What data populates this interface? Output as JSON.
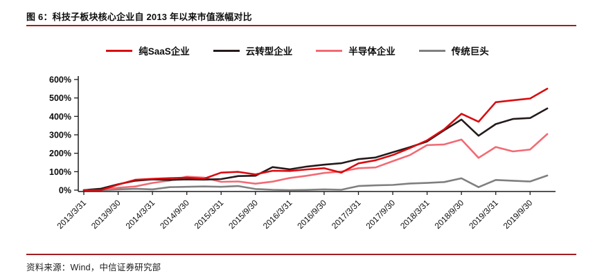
{
  "figure": {
    "title": "图 6：科技子板块核心企业自 2013 年以来市值涨幅对比",
    "source": "资料来源：Wind，中信证券研究部",
    "accent_color": "#A01D20"
  },
  "chart_data": {
    "type": "line",
    "title": "科技子板块核心企业自 2013 年以来市值涨幅对比",
    "xlabel": "",
    "ylabel": "",
    "ylim": [
      0,
      600
    ],
    "ytick_step": 100,
    "ytick_labels": [
      "0%",
      "100%",
      "200%",
      "300%",
      "400%",
      "500%",
      "600%"
    ],
    "grid": false,
    "legend_position": "top",
    "x": [
      "2013/3/31",
      "2013/6/30",
      "2013/9/30",
      "2013/12/31",
      "2014/3/31",
      "2014/6/30",
      "2014/9/30",
      "2014/12/31",
      "2015/3/31",
      "2015/6/30",
      "2015/9/30",
      "2015/12/31",
      "2016/3/31",
      "2016/6/30",
      "2016/9/30",
      "2016/12/31",
      "2017/3/31",
      "2017/6/30",
      "2017/9/30",
      "2017/12/31",
      "2018/3/31",
      "2018/6/30",
      "2018/9/30",
      "2018/12/31",
      "2019/3/31",
      "2019/6/30",
      "2019/9/30",
      "2019/12/31"
    ],
    "x_tick_labels": [
      "2013/3/31",
      "2013/9/30",
      "2014/3/31",
      "2014/9/30",
      "2015/3/31",
      "2015/9/30",
      "2016/3/31",
      "2016/9/30",
      "2017/3/31",
      "2017/9/30",
      "2018/3/31",
      "2018/9/30",
      "2019/3/31",
      "2019/9/30"
    ],
    "unit": "percent",
    "series": [
      {
        "name": "纯SaaS企业",
        "color": "#D80C10",
        "values": [
          0,
          0,
          30,
          56,
          61,
          65,
          68,
          62,
          95,
          99,
          85,
          105,
          104,
          112,
          119,
          95,
          145,
          162,
          190,
          228,
          270,
          330,
          414,
          371,
          477,
          487,
          497,
          550
        ]
      },
      {
        "name": "云转型企业",
        "color": "#241A1B",
        "values": [
          0,
          8,
          32,
          51,
          58,
          55,
          58,
          57,
          60,
          76,
          78,
          125,
          113,
          128,
          138,
          146,
          168,
          177,
          205,
          233,
          264,
          325,
          383,
          295,
          358,
          386,
          391,
          443
        ]
      },
      {
        "name": "半导体企业",
        "color": "#F26A74",
        "values": [
          0,
          2,
          13,
          20,
          39,
          52,
          73,
          68,
          45,
          47,
          35,
          46,
          66,
          78,
          93,
          101,
          119,
          123,
          157,
          190,
          244,
          248,
          274,
          175,
          234,
          210,
          220,
          304
        ]
      },
      {
        "name": "传统巨头",
        "color": "#7F7F7F",
        "values": [
          0,
          0,
          4,
          7,
          4,
          16,
          18,
          20,
          18,
          22,
          6,
          2,
          0,
          1,
          4,
          2,
          22,
          26,
          28,
          36,
          39,
          44,
          64,
          16,
          55,
          51,
          47,
          79
        ]
      }
    ]
  }
}
